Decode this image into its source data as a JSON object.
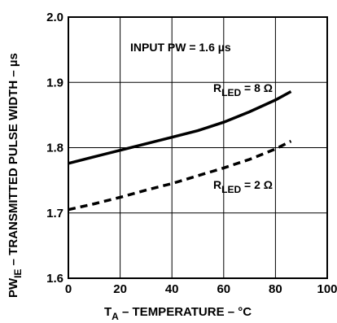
{
  "chart_data": {
    "type": "line",
    "xlabel_main": "T",
    "xlabel_sub": "A",
    "xlabel_rest": " – TEMPERATURE – °C",
    "ylabel_main": "PW",
    "ylabel_sub": "IE",
    "ylabel_rest": " – TRANSMITTED PULSE WIDTH – µs",
    "xlim": [
      0,
      100
    ],
    "ylim": [
      1.6,
      2.0
    ],
    "x_ticks": [
      0,
      20,
      40,
      60,
      80,
      100
    ],
    "x_tick_labels": [
      "0",
      "20",
      "40",
      "60",
      "80",
      "100"
    ],
    "y_ticks": [
      1.6,
      1.7,
      1.8,
      1.9,
      2.0
    ],
    "y_tick_labels": [
      "1.6",
      "1.7",
      "1.8",
      "1.9",
      "2.0"
    ],
    "grid": true,
    "annotation": "INPUT PW = 1.6 µs",
    "series": [
      {
        "label_main": "R",
        "label_sub": "LED",
        "label_rest": " = 8 Ω",
        "style": "solid",
        "x": [
          0,
          10,
          20,
          30,
          40,
          50,
          60,
          70,
          80,
          86
        ],
        "y": [
          1.776,
          1.786,
          1.796,
          1.806,
          1.816,
          1.826,
          1.839,
          1.855,
          1.873,
          1.886
        ]
      },
      {
        "label_main": "R",
        "label_sub": "LED",
        "label_rest": " = 2 Ω",
        "style": "dashed",
        "x": [
          0,
          10,
          20,
          30,
          40,
          50,
          60,
          70,
          80,
          86
        ],
        "y": [
          1.705,
          1.714,
          1.724,
          1.735,
          1.745,
          1.757,
          1.769,
          1.782,
          1.798,
          1.81
        ]
      }
    ]
  }
}
